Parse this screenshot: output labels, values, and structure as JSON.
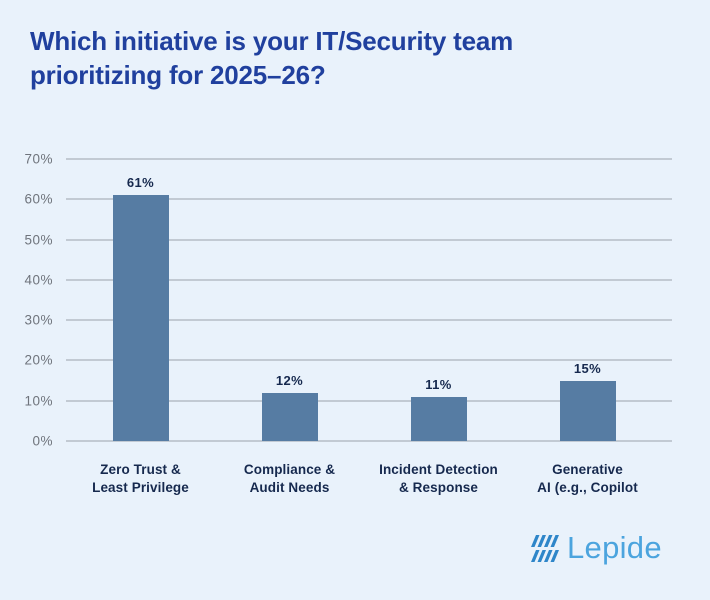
{
  "title": "Which initiative is your IT/Security team prioritizing for 2025–26?",
  "colors": {
    "background": "#e9f2fb",
    "title_text": "#20409e",
    "bar_fill": "#567CA3",
    "gridline": "#9ba2ab",
    "y_tick_text": "#6f747c",
    "label_text": "#16294e",
    "logo_text": "#4BA4DE",
    "logo_icon": "#2E86C9"
  },
  "chart_data": {
    "type": "bar",
    "title": "Which initiative is your IT/Security team prioritizing for 2025–26?",
    "categories": [
      "Zero Trust & Least Privilege",
      "Compliance & Audit Needs",
      "Incident Detection & Response",
      "Generative AI (e.g., Copilot"
    ],
    "category_lines": [
      [
        "Zero Trust &",
        "Least Privilege"
      ],
      [
        "Compliance &",
        "Audit Needs"
      ],
      [
        "Incident Detection",
        "& Response"
      ],
      [
        "Generative",
        "AI (e.g., Copilot"
      ]
    ],
    "values": [
      61,
      12,
      11,
      15
    ],
    "value_labels": [
      "61%",
      "12%",
      "11%",
      "15%"
    ],
    "xlabel": "",
    "ylabel": "",
    "ylim": [
      0,
      70
    ],
    "yticks": [
      0,
      10,
      20,
      30,
      40,
      50,
      60,
      70
    ],
    "ytick_suffix": "%",
    "grid": true,
    "legend": false,
    "bar_color": "#567CA3"
  },
  "logo": {
    "text": "Lepide",
    "icon": "lepide-stripes-icon"
  }
}
